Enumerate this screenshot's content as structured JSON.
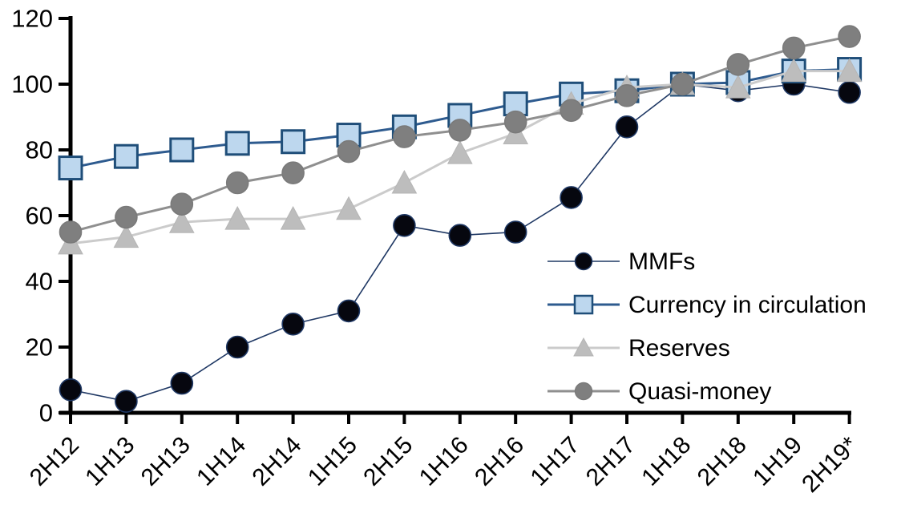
{
  "figure": {
    "background": "#FFFFFF",
    "axis_color": "#000000",
    "text_color": "#000000"
  },
  "chart_data": {
    "type": "line",
    "title": "",
    "xlabel": "",
    "ylabel": "",
    "ylim": [
      0,
      120
    ],
    "yticks": [
      0,
      20,
      40,
      60,
      80,
      100,
      120
    ],
    "grid": false,
    "legend_position": "center-right",
    "x_tick_rotation_deg": -45,
    "categories": [
      "2H12",
      "1H13",
      "2H13",
      "1H14",
      "2H14",
      "1H15",
      "2H15",
      "1H16",
      "2H16",
      "1H17",
      "2H17",
      "1H18",
      "2H18",
      "1H19",
      "2H19*"
    ],
    "series": [
      {
        "name": "MMFs",
        "marker": "circle",
        "line_color": "#1F3864",
        "marker_fill": "#06070F",
        "marker_edge": "#1F3864",
        "line_width": 1.6,
        "values": [
          7,
          3.5,
          9,
          20,
          27,
          31,
          57,
          54,
          55,
          65.5,
          87,
          100,
          98,
          100,
          97.5
        ]
      },
      {
        "name": "Currency in circulation",
        "marker": "square",
        "line_color": "#2E5B8F",
        "marker_fill": "#BDD7EE",
        "marker_edge": "#1F4E79",
        "line_width": 3,
        "values": [
          74.5,
          78,
          80,
          82,
          82.5,
          84.5,
          87,
          90.5,
          94,
          97,
          98,
          100,
          100.5,
          104,
          104.5
        ]
      },
      {
        "name": "Reserves",
        "marker": "triangle",
        "line_color": "#CBCBCB",
        "marker_fill": "#BDBDBD",
        "marker_edge": "#B5B5B5",
        "line_width": 3,
        "values": [
          51.5,
          53.5,
          58,
          59,
          59,
          62,
          70,
          79,
          85,
          94,
          99,
          100,
          99,
          104,
          104
        ]
      },
      {
        "name": "Quasi-money",
        "marker": "circle",
        "line_color": "#8F8F8F",
        "marker_fill": "#7F7F7F",
        "marker_edge": "#7A7A7A",
        "line_width": 3,
        "values": [
          55,
          59.5,
          63.5,
          70,
          73,
          79.5,
          84,
          86,
          88.5,
          92,
          96.5,
          100,
          106,
          111,
          114.5
        ]
      }
    ]
  }
}
